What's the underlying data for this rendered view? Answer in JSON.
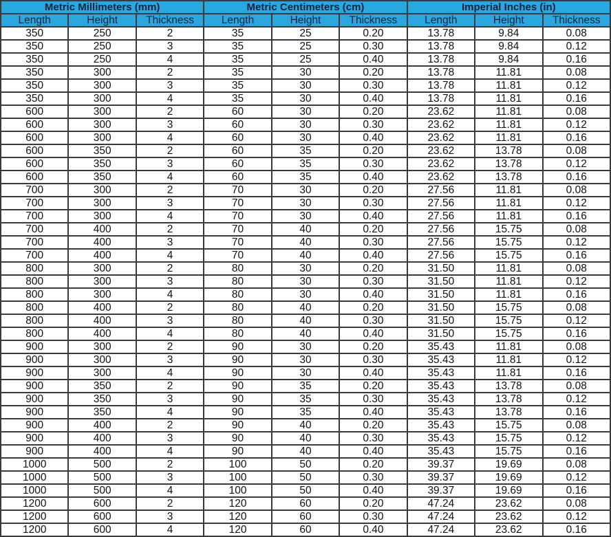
{
  "colors": {
    "header_bg": "#29a8e0",
    "header_text": "#14213d",
    "border": "#3a3a3a"
  },
  "groups": [
    "Metric Millimeters (mm)",
    "Metric Centimeters (cm)",
    "Imperial Inches (in)"
  ],
  "subheaders": [
    "Length",
    "Height",
    "Thickness",
    "Length",
    "Height",
    "Thickness",
    "Length",
    "Height",
    "Thickness"
  ],
  "rows": [
    [
      "350",
      "250",
      "2",
      "35",
      "25",
      "0.20",
      "13.78",
      "9.84",
      "0.08"
    ],
    [
      "350",
      "250",
      "3",
      "35",
      "25",
      "0.30",
      "13.78",
      "9.84",
      "0.12"
    ],
    [
      "350",
      "250",
      "4",
      "35",
      "25",
      "0.40",
      "13.78",
      "9.84",
      "0.16"
    ],
    [
      "350",
      "300",
      "2",
      "35",
      "30",
      "0.20",
      "13.78",
      "11.81",
      "0.08"
    ],
    [
      "350",
      "300",
      "3",
      "35",
      "30",
      "0.30",
      "13.78",
      "11.81",
      "0.12"
    ],
    [
      "350",
      "300",
      "4",
      "35",
      "30",
      "0.40",
      "13.78",
      "11.81",
      "0.16"
    ],
    [
      "600",
      "300",
      "2",
      "60",
      "30",
      "0.20",
      "23.62",
      "11.81",
      "0.08"
    ],
    [
      "600",
      "300",
      "3",
      "60",
      "30",
      "0.30",
      "23.62",
      "11.81",
      "0.12"
    ],
    [
      "600",
      "300",
      "4",
      "60",
      "30",
      "0.40",
      "23.62",
      "11.81",
      "0.16"
    ],
    [
      "600",
      "350",
      "2",
      "60",
      "35",
      "0.20",
      "23.62",
      "13.78",
      "0.08"
    ],
    [
      "600",
      "350",
      "3",
      "60",
      "35",
      "0.30",
      "23.62",
      "13.78",
      "0.12"
    ],
    [
      "600",
      "350",
      "4",
      "60",
      "35",
      "0.40",
      "23.62",
      "13.78",
      "0.16"
    ],
    [
      "700",
      "300",
      "2",
      "70",
      "30",
      "0.20",
      "27.56",
      "11.81",
      "0.08"
    ],
    [
      "700",
      "300",
      "3",
      "70",
      "30",
      "0.30",
      "27.56",
      "11.81",
      "0.12"
    ],
    [
      "700",
      "300",
      "4",
      "70",
      "30",
      "0.40",
      "27.56",
      "11.81",
      "0.16"
    ],
    [
      "700",
      "400",
      "2",
      "70",
      "40",
      "0.20",
      "27.56",
      "15.75",
      "0.08"
    ],
    [
      "700",
      "400",
      "3",
      "70",
      "40",
      "0.30",
      "27.56",
      "15.75",
      "0.12"
    ],
    [
      "700",
      "400",
      "4",
      "70",
      "40",
      "0.40",
      "27.56",
      "15.75",
      "0.16"
    ],
    [
      "800",
      "300",
      "2",
      "80",
      "30",
      "0.20",
      "31.50",
      "11.81",
      "0.08"
    ],
    [
      "800",
      "300",
      "3",
      "80",
      "30",
      "0.30",
      "31.50",
      "11.81",
      "0.12"
    ],
    [
      "800",
      "300",
      "4",
      "80",
      "30",
      "0.40",
      "31.50",
      "11.81",
      "0.16"
    ],
    [
      "800",
      "400",
      "2",
      "80",
      "40",
      "0.20",
      "31.50",
      "15.75",
      "0.08"
    ],
    [
      "800",
      "400",
      "3",
      "80",
      "40",
      "0.30",
      "31.50",
      "15.75",
      "0.12"
    ],
    [
      "800",
      "400",
      "4",
      "80",
      "40",
      "0.40",
      "31.50",
      "15.75",
      "0.16"
    ],
    [
      "900",
      "300",
      "2",
      "90",
      "30",
      "0.20",
      "35.43",
      "11.81",
      "0.08"
    ],
    [
      "900",
      "300",
      "3",
      "90",
      "30",
      "0.30",
      "35.43",
      "11.81",
      "0.12"
    ],
    [
      "900",
      "300",
      "4",
      "90",
      "30",
      "0.40",
      "35.43",
      "11.81",
      "0.16"
    ],
    [
      "900",
      "350",
      "2",
      "90",
      "35",
      "0.20",
      "35.43",
      "13.78",
      "0.08"
    ],
    [
      "900",
      "350",
      "3",
      "90",
      "35",
      "0.30",
      "35.43",
      "13.78",
      "0.12"
    ],
    [
      "900",
      "350",
      "4",
      "90",
      "35",
      "0.40",
      "35.43",
      "13.78",
      "0.16"
    ],
    [
      "900",
      "400",
      "2",
      "90",
      "40",
      "0.20",
      "35.43",
      "15.75",
      "0.08"
    ],
    [
      "900",
      "400",
      "3",
      "90",
      "40",
      "0.30",
      "35.43",
      "15.75",
      "0.12"
    ],
    [
      "900",
      "400",
      "4",
      "90",
      "40",
      "0.40",
      "35.43",
      "15.75",
      "0.16"
    ],
    [
      "1000",
      "500",
      "2",
      "100",
      "50",
      "0.20",
      "39.37",
      "19.69",
      "0.08"
    ],
    [
      "1000",
      "500",
      "3",
      "100",
      "50",
      "0.30",
      "39.37",
      "19.69",
      "0.12"
    ],
    [
      "1000",
      "500",
      "4",
      "100",
      "50",
      "0.40",
      "39.37",
      "19.69",
      "0.16"
    ],
    [
      "1200",
      "600",
      "2",
      "120",
      "60",
      "0.20",
      "47.24",
      "23.62",
      "0.08"
    ],
    [
      "1200",
      "600",
      "3",
      "120",
      "60",
      "0.30",
      "47.24",
      "23.62",
      "0.12"
    ],
    [
      "1200",
      "600",
      "4",
      "120",
      "60",
      "0.40",
      "47.24",
      "23.62",
      "0.16"
    ]
  ]
}
